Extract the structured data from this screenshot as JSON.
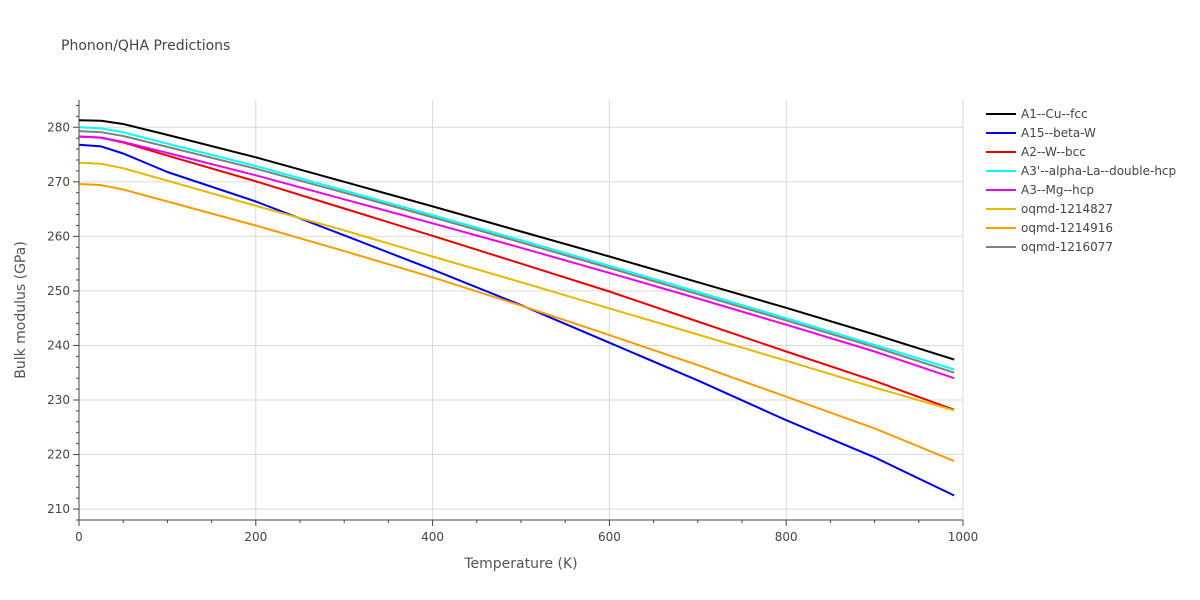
{
  "chart_data": {
    "type": "line",
    "title": "Phonon/QHA Predictions",
    "xlabel": "Temperature (K)",
    "ylabel": "Bulk modulus (GPa)",
    "xlim": [
      0,
      1000
    ],
    "ylim": [
      208,
      285
    ],
    "xticks": [
      0,
      200,
      400,
      600,
      800,
      1000
    ],
    "yticks": [
      210,
      220,
      230,
      240,
      250,
      260,
      270,
      280
    ],
    "grid": true,
    "legend_position": "right",
    "series": [
      {
        "name": "A1--Cu--fcc",
        "color": "#000000",
        "x": [
          0,
          25,
          50,
          100,
          200,
          300,
          400,
          500,
          600,
          700,
          800,
          900,
          990
        ],
        "y": [
          281.3,
          281.2,
          280.6,
          278.6,
          274.5,
          270.0,
          265.5,
          260.9,
          256.3,
          251.6,
          246.9,
          242.0,
          237.4
        ]
      },
      {
        "name": "A15--beta-W",
        "color": "#0000ee",
        "x": [
          0,
          25,
          50,
          100,
          200,
          300,
          400,
          500,
          600,
          700,
          800,
          900,
          990
        ],
        "y": [
          276.8,
          276.5,
          275.2,
          271.8,
          266.4,
          260.2,
          253.9,
          247.4,
          240.5,
          233.6,
          226.3,
          219.5,
          212.5
        ]
      },
      {
        "name": "A2--W--bcc",
        "color": "#ee0000",
        "x": [
          0,
          25,
          50,
          100,
          200,
          300,
          400,
          500,
          600,
          700,
          800,
          900,
          990
        ],
        "y": [
          278.3,
          278.1,
          277.2,
          274.8,
          270.1,
          265.1,
          260.1,
          255.0,
          249.9,
          244.4,
          238.9,
          233.5,
          228.2
        ]
      },
      {
        "name": "A3'--alpha-La--double-hcp",
        "color": "#00ffff",
        "x": [
          0,
          25,
          50,
          100,
          200,
          300,
          400,
          500,
          600,
          700,
          800,
          900,
          990
        ],
        "y": [
          280.0,
          279.8,
          279.1,
          277.0,
          272.9,
          268.4,
          263.9,
          259.3,
          254.6,
          249.8,
          245.0,
          240.1,
          235.6
        ]
      },
      {
        "name": "A3--Mg--hcp",
        "color": "#ee00ee",
        "x": [
          0,
          25,
          50,
          100,
          200,
          300,
          400,
          500,
          600,
          700,
          800,
          900,
          990
        ],
        "y": [
          278.3,
          278.1,
          277.3,
          275.3,
          271.2,
          266.8,
          262.4,
          257.9,
          253.3,
          248.6,
          243.8,
          238.9,
          234.0
        ]
      },
      {
        "name": "oqmd-1214827",
        "color": "#e6b800",
        "x": [
          0,
          25,
          50,
          100,
          200,
          300,
          400,
          500,
          600,
          700,
          800,
          900,
          990
        ],
        "y": [
          273.5,
          273.3,
          272.5,
          270.2,
          265.6,
          261.1,
          256.3,
          251.6,
          246.8,
          242.0,
          237.2,
          232.3,
          228.1
        ]
      },
      {
        "name": "oqmd-1214916",
        "color": "#ff9900",
        "x": [
          0,
          25,
          50,
          100,
          200,
          300,
          400,
          500,
          600,
          700,
          800,
          900,
          990
        ],
        "y": [
          269.6,
          269.4,
          268.6,
          266.4,
          262.0,
          257.3,
          252.5,
          247.3,
          241.9,
          236.4,
          230.6,
          224.8,
          218.8
        ]
      },
      {
        "name": "oqmd-1216077",
        "color": "#808080",
        "x": [
          0,
          25,
          50,
          100,
          200,
          300,
          400,
          500,
          600,
          700,
          800,
          900,
          990
        ],
        "y": [
          279.3,
          279.1,
          278.4,
          276.4,
          272.4,
          268.0,
          263.5,
          258.9,
          254.2,
          249.4,
          244.6,
          239.7,
          235.0
        ]
      }
    ]
  }
}
